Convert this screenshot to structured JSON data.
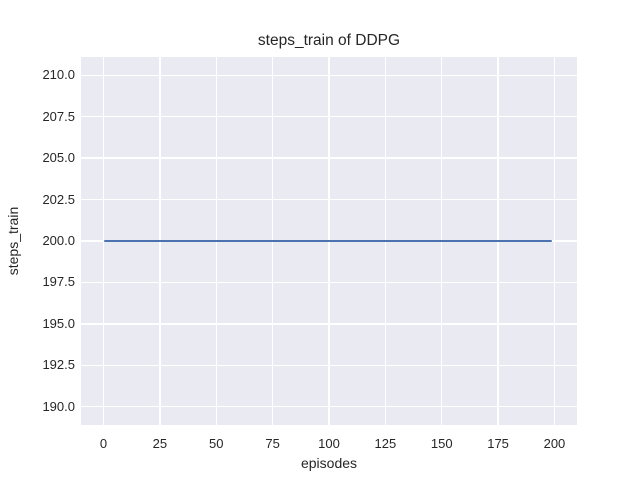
{
  "chart_data": {
    "type": "line",
    "title": "steps_train of DDPG",
    "xlabel": "episodes",
    "ylabel": "steps_train",
    "xlim": [
      -10,
      210
    ],
    "ylim": [
      188.9,
      211.1
    ],
    "xticks": [
      0,
      25,
      50,
      75,
      100,
      125,
      150,
      175,
      200
    ],
    "xtick_labels": [
      "0",
      "25",
      "50",
      "75",
      "100",
      "125",
      "150",
      "175",
      "200"
    ],
    "yticks": [
      190.0,
      192.5,
      195.0,
      197.5,
      200.0,
      202.5,
      205.0,
      207.5,
      210.0
    ],
    "ytick_labels": [
      "190.0",
      "192.5",
      "195.0",
      "197.5",
      "200.0",
      "202.5",
      "205.0",
      "207.5",
      "210.0"
    ],
    "grid": true,
    "legend": false,
    "series": [
      {
        "name": "steps_train",
        "description": "constant value 200 for every episode from 0 to 199",
        "x": [
          0,
          199
        ],
        "y": [
          200,
          200
        ],
        "color": "#4c72b0"
      }
    ],
    "colors": {
      "figure_background": "#ffffff",
      "axes_background": "#eaeaf2",
      "grid": "#ffffff",
      "text": "#262626",
      "line": "#4c72b0"
    }
  }
}
